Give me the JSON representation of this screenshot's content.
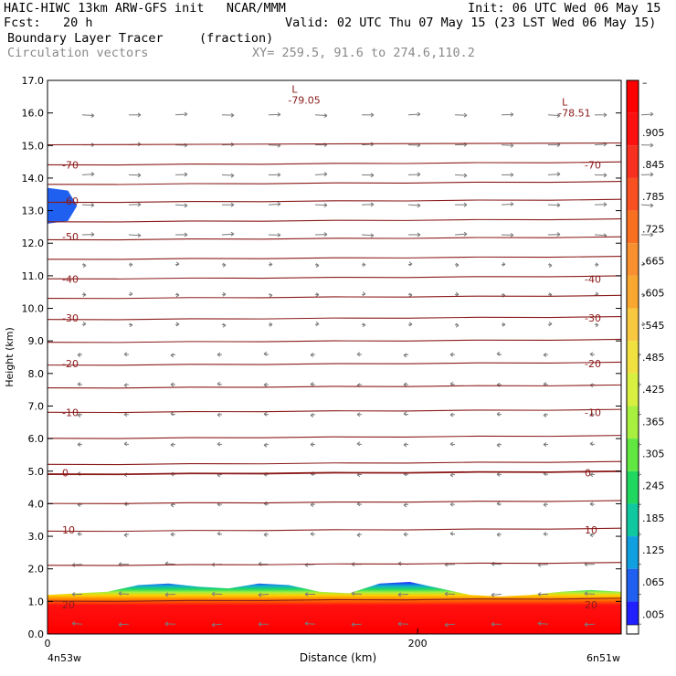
{
  "header": {
    "line1_left": "HAIC-HIWC 13km ARW-GFS init   NCAR/MMM",
    "line1_right": "Init: 06 UTC Wed 06 May 15",
    "line2_left": "Fcst:   20 h",
    "line2_right": "Valid: 02 UTC Thu 07 May 15 (23 LST Wed 06 May 15)",
    "line3_field": "Boundary Layer Tracer",
    "line3_units": "(fraction)",
    "line4_vectors": "Circulation vectors",
    "line4_xy": "XY= 259.5, 91.6 to 274.6,110.2"
  },
  "chart_data": {
    "type": "heatmap",
    "ylabel": "Height (km)",
    "xlabel": "Distance (km)",
    "ylim": [
      0,
      17
    ],
    "xlim": [
      0,
      310
    ],
    "y_ticks": [
      "0.0",
      "1.0",
      "2.0",
      "3.0",
      "4.0",
      "5.0",
      "6.0",
      "7.0",
      "8.0",
      "9.0",
      "10.0",
      "11.0",
      "12.0",
      "13.0",
      "14.0",
      "15.0",
      "16.0",
      "17.0"
    ],
    "x_ticks": [
      {
        "value": 0,
        "label": "0"
      },
      {
        "value": 200,
        "label": "200"
      }
    ],
    "x_end_labels": {
      "left": "4n53w",
      "right": "6n51w"
    },
    "colorbar": {
      "labels": [
        "–",
        ".905",
        ".845",
        ".785",
        ".725",
        ".665",
        ".605",
        ".545",
        ".485",
        ".425",
        ".365",
        ".305",
        ".245",
        ".185",
        ".125",
        ".065",
        ".005"
      ],
      "colors": [
        "#ff0000",
        "#fc1010",
        "#f83020",
        "#f85020",
        "#f87020",
        "#f89030",
        "#f8a830",
        "#f8c840",
        "#f0e040",
        "#d8f040",
        "#a8f040",
        "#60e840",
        "#20d860",
        "#10c8a0",
        "#10a0e0",
        "#2060f0",
        "#2020ff"
      ]
    },
    "temperature_contours": [
      {
        "label": "-79.05",
        "x": 130,
        "y": 16.4
      },
      {
        "label": "-78.51",
        "x": 276,
        "y": 16.0
      },
      {
        "label": "-70",
        "y": 14.4
      },
      {
        "label": "-60",
        "y": 13.3
      },
      {
        "label": "-50",
        "y": 12.2
      },
      {
        "label": "-40",
        "y": 10.9
      },
      {
        "label": "-30",
        "y": 9.7
      },
      {
        "label": "-20",
        "y": 8.3
      },
      {
        "label": "-10",
        "y": 6.8
      },
      {
        "label": "0",
        "y": 4.95
      },
      {
        "label": "10",
        "y": 3.2
      },
      {
        "label": "20",
        "y": 0.9
      }
    ],
    "contour_levels_y": [
      14.45,
      13.85,
      13.3,
      12.7,
      12.15,
      11.55,
      10.95,
      10.35,
      9.7,
      9.0,
      8.3,
      7.6,
      6.85,
      6.05,
      5.25,
      4.95,
      4.05,
      3.2,
      2.15,
      1.05
    ],
    "tropopause_line_y": 15.05,
    "tracer_layer_top_km": [
      1.2,
      1.25,
      1.3,
      1.5,
      1.55,
      1.45,
      1.4,
      1.55,
      1.5,
      1.3,
      1.25,
      1.55,
      1.6,
      1.4,
      1.2,
      1.15,
      1.2,
      1.3,
      1.35,
      1.3
    ],
    "upper_tracer_patch": {
      "x_range": [
        0,
        16
      ],
      "y_range": [
        12.6,
        13.7
      ],
      "value": ".005"
    }
  }
}
